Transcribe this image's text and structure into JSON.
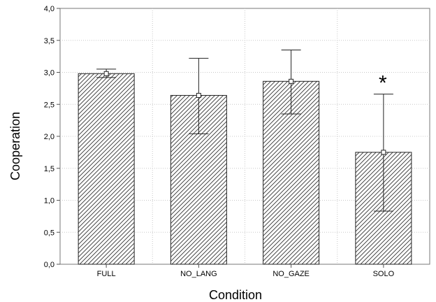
{
  "chart_data": {
    "type": "bar",
    "categories": [
      "FULL",
      "NO_LANG",
      "NO_GAZE",
      "SOLO"
    ],
    "values": [
      2.98,
      2.64,
      2.86,
      1.75
    ],
    "error_upper": [
      3.05,
      3.22,
      3.35,
      2.66
    ],
    "error_lower": [
      2.92,
      2.04,
      2.35,
      0.83
    ],
    "xlabel": "Condition",
    "ylabel": "Cooperation",
    "ylim": [
      0,
      4
    ],
    "yticks": [
      "0,0",
      "0,5",
      "1,0",
      "1,5",
      "2,0",
      "2,5",
      "3,0",
      "3,5",
      "4,0"
    ],
    "grid": true,
    "annotations": [
      {
        "category": "SOLO",
        "text": "*"
      }
    ],
    "colors": {
      "bar_fill": "#ffffff",
      "hatch": "#333333",
      "grid": "#c8c8c8",
      "axis": "#555555"
    }
  }
}
